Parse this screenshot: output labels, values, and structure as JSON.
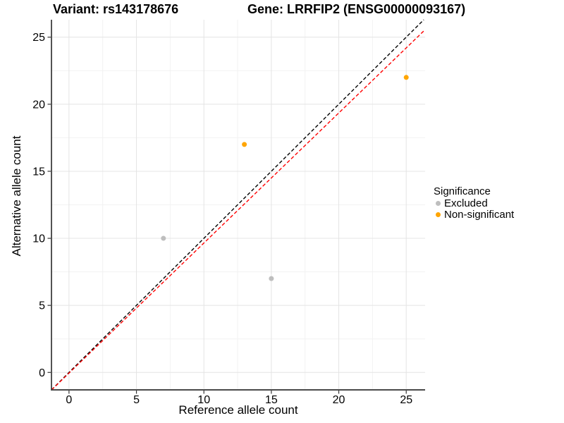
{
  "header": {
    "title_left": "Variant: rs143178676",
    "title_right": "Gene: LRRFIP2 (ENSG00000093167)"
  },
  "chart_data": {
    "type": "scatter",
    "title_left": "Variant: rs143178676",
    "title_right": "Gene: LRRFIP2 (ENSG00000093167)",
    "xlabel": "Reference allele count",
    "ylabel": "Alternative allele count",
    "xticks": [
      0,
      5,
      10,
      15,
      20,
      25
    ],
    "yticks": [
      0,
      5,
      10,
      15,
      20,
      25
    ],
    "xlim": [
      -1.3,
      26.4
    ],
    "ylim": [
      -1.3,
      26.3
    ],
    "minor_tick_step": 2.5,
    "grid": {
      "major": true,
      "minor": true
    },
    "legend": {
      "title": "Significance",
      "position": "right",
      "entries": [
        {
          "label": "Excluded",
          "color": "#BEBEBE"
        },
        {
          "label": "Non-significant",
          "color": "#FFA500"
        }
      ]
    },
    "series": [
      {
        "name": "Excluded",
        "color": "#BEBEBE",
        "points": [
          {
            "x": 7,
            "y": 10
          },
          {
            "x": 15,
            "y": 7
          }
        ]
      },
      {
        "name": "Non-significant",
        "color": "#FFA500",
        "points": [
          {
            "x": 13,
            "y": 17
          },
          {
            "x": 25,
            "y": 22
          }
        ]
      }
    ],
    "ablines": [
      {
        "name": "identity-line",
        "slope": 1,
        "intercept": 0,
        "color": "#000000",
        "dash": "5,3"
      },
      {
        "name": "fit-line",
        "slope": 0.97,
        "intercept": -0.05,
        "color": "#FF0000",
        "dash": "5,3"
      }
    ],
    "colors": {
      "grid_major": "#E4E4E4",
      "grid_minor": "#F2F2F2",
      "axis_line_x": "#4A4A4A",
      "axis_line_y": "#1A1A1A",
      "tick_mark": "#333333"
    }
  }
}
